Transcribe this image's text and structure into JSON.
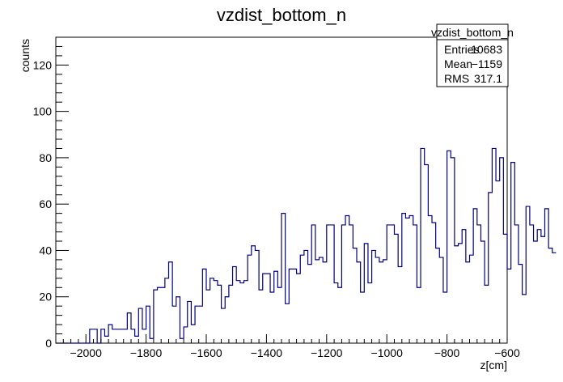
{
  "chart_data": {
    "type": "bar",
    "title": "vzdist_bottom_n",
    "xlabel": "z[cm]",
    "ylabel": "counts",
    "xlim": [
      -2100,
      -600
    ],
    "ylim": [
      0,
      132
    ],
    "bin_width": 12.5,
    "x_start": -2100,
    "x_ticks": [
      -2000,
      -1800,
      -1600,
      -1400,
      -1200,
      -1000,
      -800,
      -600
    ],
    "y_ticks": [
      0,
      20,
      40,
      60,
      80,
      100,
      120
    ],
    "grid": false,
    "legend": "top-right",
    "line_color": "#000080",
    "values": [
      0,
      0,
      0,
      0,
      0,
      0,
      0,
      0,
      0,
      6,
      6,
      0,
      6,
      3,
      8,
      6,
      6,
      6,
      6,
      13,
      6,
      3,
      15,
      6,
      16,
      2,
      23,
      24,
      24,
      28,
      35,
      16,
      20,
      2,
      7,
      18,
      8,
      16,
      16,
      32,
      23,
      28,
      27,
      25,
      15,
      20,
      25,
      33,
      27,
      26,
      27,
      38,
      42,
      40,
      23,
      30,
      30,
      22,
      31,
      24,
      56,
      17,
      32,
      32,
      30,
      38,
      40,
      34,
      51,
      36,
      37,
      35,
      51,
      51,
      26,
      24,
      51,
      55,
      51,
      41,
      35,
      22,
      43,
      26,
      40,
      37,
      35,
      36,
      51,
      51,
      47,
      33,
      56,
      54,
      55,
      51,
      24,
      84,
      77,
      55,
      52,
      41,
      37,
      22,
      83,
      80,
      42,
      43,
      49,
      35,
      38,
      58,
      51,
      44,
      25,
      65,
      84,
      70,
      80,
      47,
      32,
      78,
      51,
      34,
      21,
      59,
      51,
      44,
      49,
      46,
      58,
      41,
      39
    ],
    "stats": {
      "title": "vzdist_bottom_n",
      "rows": [
        {
          "label": "Entries",
          "value": "10683"
        },
        {
          "label": "Mean",
          "value": "−1159"
        },
        {
          "label": "RMS",
          "value": "317.1"
        }
      ]
    }
  }
}
